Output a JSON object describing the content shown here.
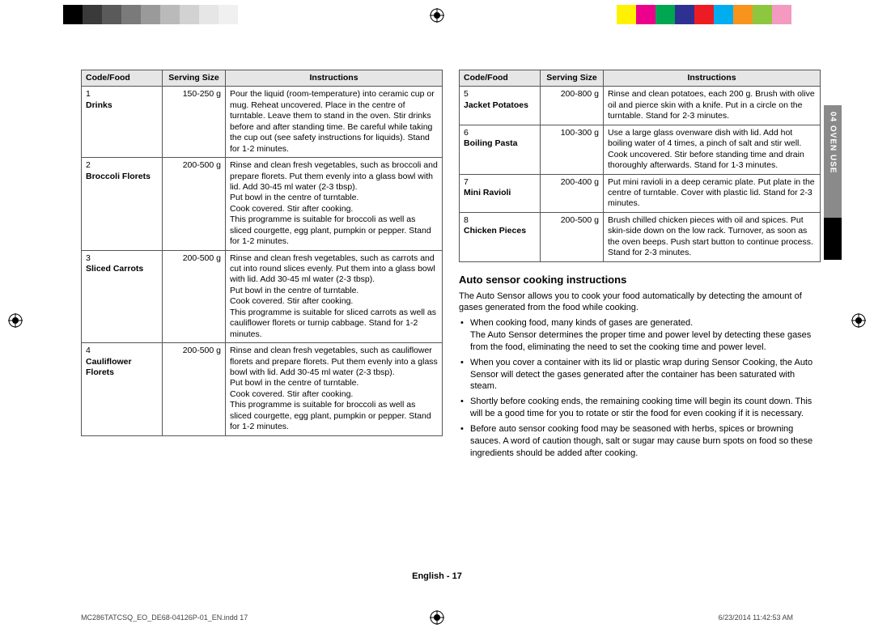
{
  "colorbars": {
    "left": [
      "#000000",
      "#3a3a3a",
      "#5a5a5a",
      "#7a7a7a",
      "#9a9a9a",
      "#bababa",
      "#d2d2d2",
      "#e6e6e6",
      "#f0f0f0",
      "#ffffff"
    ],
    "right": [
      "#fff200",
      "#ec008c",
      "#00a651",
      "#2e3192",
      "#ed1c24",
      "#00adef",
      "#f7941d",
      "#8dc63f",
      "#f49ac1",
      "#ffffff"
    ]
  },
  "side_tab": "04  OVEN USE",
  "table_headers": [
    "Code/Food",
    "Serving Size",
    "Instructions"
  ],
  "left_rows": [
    {
      "num": "1",
      "name": "Drinks",
      "size": "150-250 g",
      "instr": "Pour the liquid (room-temperature) into ceramic cup or mug. Reheat uncovered. Place in the centre of turntable. Leave them to stand in the oven. Stir drinks before and after standing time. Be careful while taking the cup out (see safety instructions for liquids). Stand for 1-2 minutes."
    },
    {
      "num": "2",
      "name": "Broccoli Florets",
      "size": "200-500 g",
      "instr": "Rinse and clean fresh vegetables, such as broccoli and prepare florets. Put them evenly into a glass bowl with lid. Add 30-45 ml water (2-3 tbsp).\nPut bowl in the centre of turntable.\nCook covered. Stir after cooking.\nThis programme is suitable for broccoli as well as sliced courgette, egg plant, pumpkin or pepper. Stand for 1-2 minutes."
    },
    {
      "num": "3",
      "name": "Sliced Carrots",
      "size": "200-500 g",
      "instr": "Rinse and clean fresh vegetables, such as carrots and cut into round slices evenly. Put them into a glass bowl with lid. Add 30-45 ml water (2-3 tbsp).\nPut bowl in the centre of turntable.\nCook covered. Stir after cooking.\nThis programme is suitable for sliced carrots as well as cauliflower florets or turnip cabbage. Stand for 1-2 minutes."
    },
    {
      "num": "4",
      "name": "Cauliflower Florets",
      "size": "200-500 g",
      "instr": "Rinse and clean fresh vegetables, such as cauliflower florets and prepare florets. Put them evenly into a glass bowl with lid. Add 30-45 ml water (2-3 tbsp).\nPut bowl in the centre of turntable.\nCook covered. Stir after cooking.\nThis programme is suitable for broccoli as well as sliced courgette, egg plant, pumpkin or pepper. Stand for 1-2 minutes."
    }
  ],
  "right_rows": [
    {
      "num": "5",
      "name": "Jacket Potatoes",
      "size": "200-800 g",
      "instr": "Rinse and clean potatoes, each 200 g. Brush with olive oil and pierce skin with a knife. Put in a circle on the turntable. Stand for 2-3 minutes."
    },
    {
      "num": "6",
      "name": "Boiling Pasta",
      "size": "100-300 g",
      "instr": "Use a large glass ovenware dish with lid. Add hot boiling water of 4 times, a pinch of salt and stir well. Cook uncovered. Stir before standing time and drain thoroughly afterwards. Stand for 1-3 minutes."
    },
    {
      "num": "7",
      "name": "Mini Ravioli",
      "size": "200-400 g",
      "instr": "Put mini ravioli in a deep ceramic plate. Put plate in the centre of turntable. Cover with plastic lid. Stand for 2-3 minutes."
    },
    {
      "num": "8",
      "name": "Chicken Pieces",
      "size": "200-500 g",
      "instr": "Brush chilled chicken pieces with oil and spices. Put skin-side down on the low rack. Turnover, as soon as the oven beeps. Push start button to continue process. Stand for 2-3 minutes."
    }
  ],
  "section_heading": "Auto sensor cooking instructions",
  "section_intro": "The Auto Sensor allows you to cook your food automatically by detecting the amount of gases generated from the food while cooking.",
  "bullets": [
    "When cooking food, many kinds of gases are generated.\nThe Auto Sensor determines the proper time and power level by detecting these gases from the food, eliminating the need to set the cooking time and power level.",
    "When you cover a container with its lid or plastic wrap during Sensor Cooking, the Auto Sensor will detect the gases generated after the container has been saturated with steam.",
    "Shortly before cooking ends, the remaining cooking time will begin its count down. This will be a good time for you to rotate or stir the food for even cooking if it is necessary.",
    "Before auto sensor cooking food may be seasoned with herbs, spices or browning sauces. A word of caution though, salt or sugar may cause burn spots on food so these ingredients should be added after cooking."
  ],
  "footer": {
    "center": "English - 17",
    "left": "MC286TATCSQ_EO_DE68-04126P-01_EN.indd   17",
    "right": "6/23/2014   11:42:53 AM"
  }
}
